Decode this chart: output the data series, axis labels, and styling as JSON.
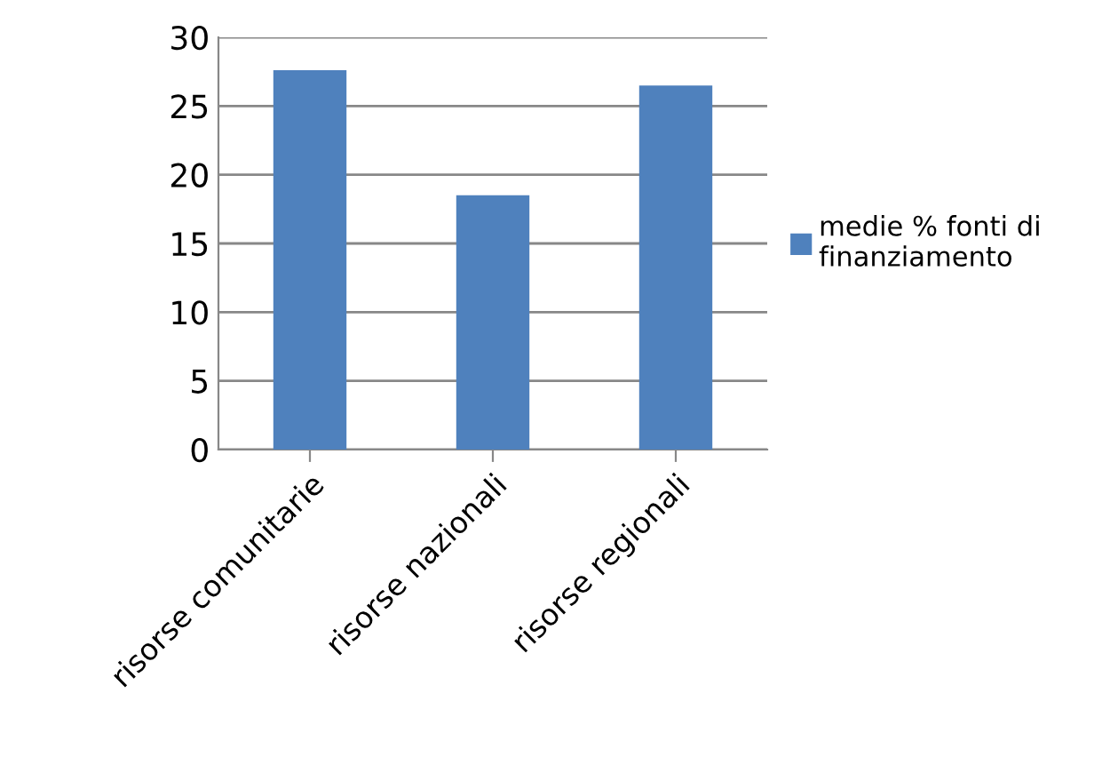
{
  "chart_data": {
    "type": "bar",
    "categories": [
      "risorse comunitarie",
      "risorse nazionali",
      "risorse regionali"
    ],
    "series": [
      {
        "name": "medie % fonti di finanziamento",
        "color": "#4f81bd",
        "values": [
          27.6,
          18.5,
          26.5
        ]
      }
    ],
    "ylim": [
      0,
      30
    ],
    "yticks": [
      0,
      5,
      10,
      15,
      20,
      25,
      30
    ],
    "grid": "y",
    "legend": "right"
  }
}
